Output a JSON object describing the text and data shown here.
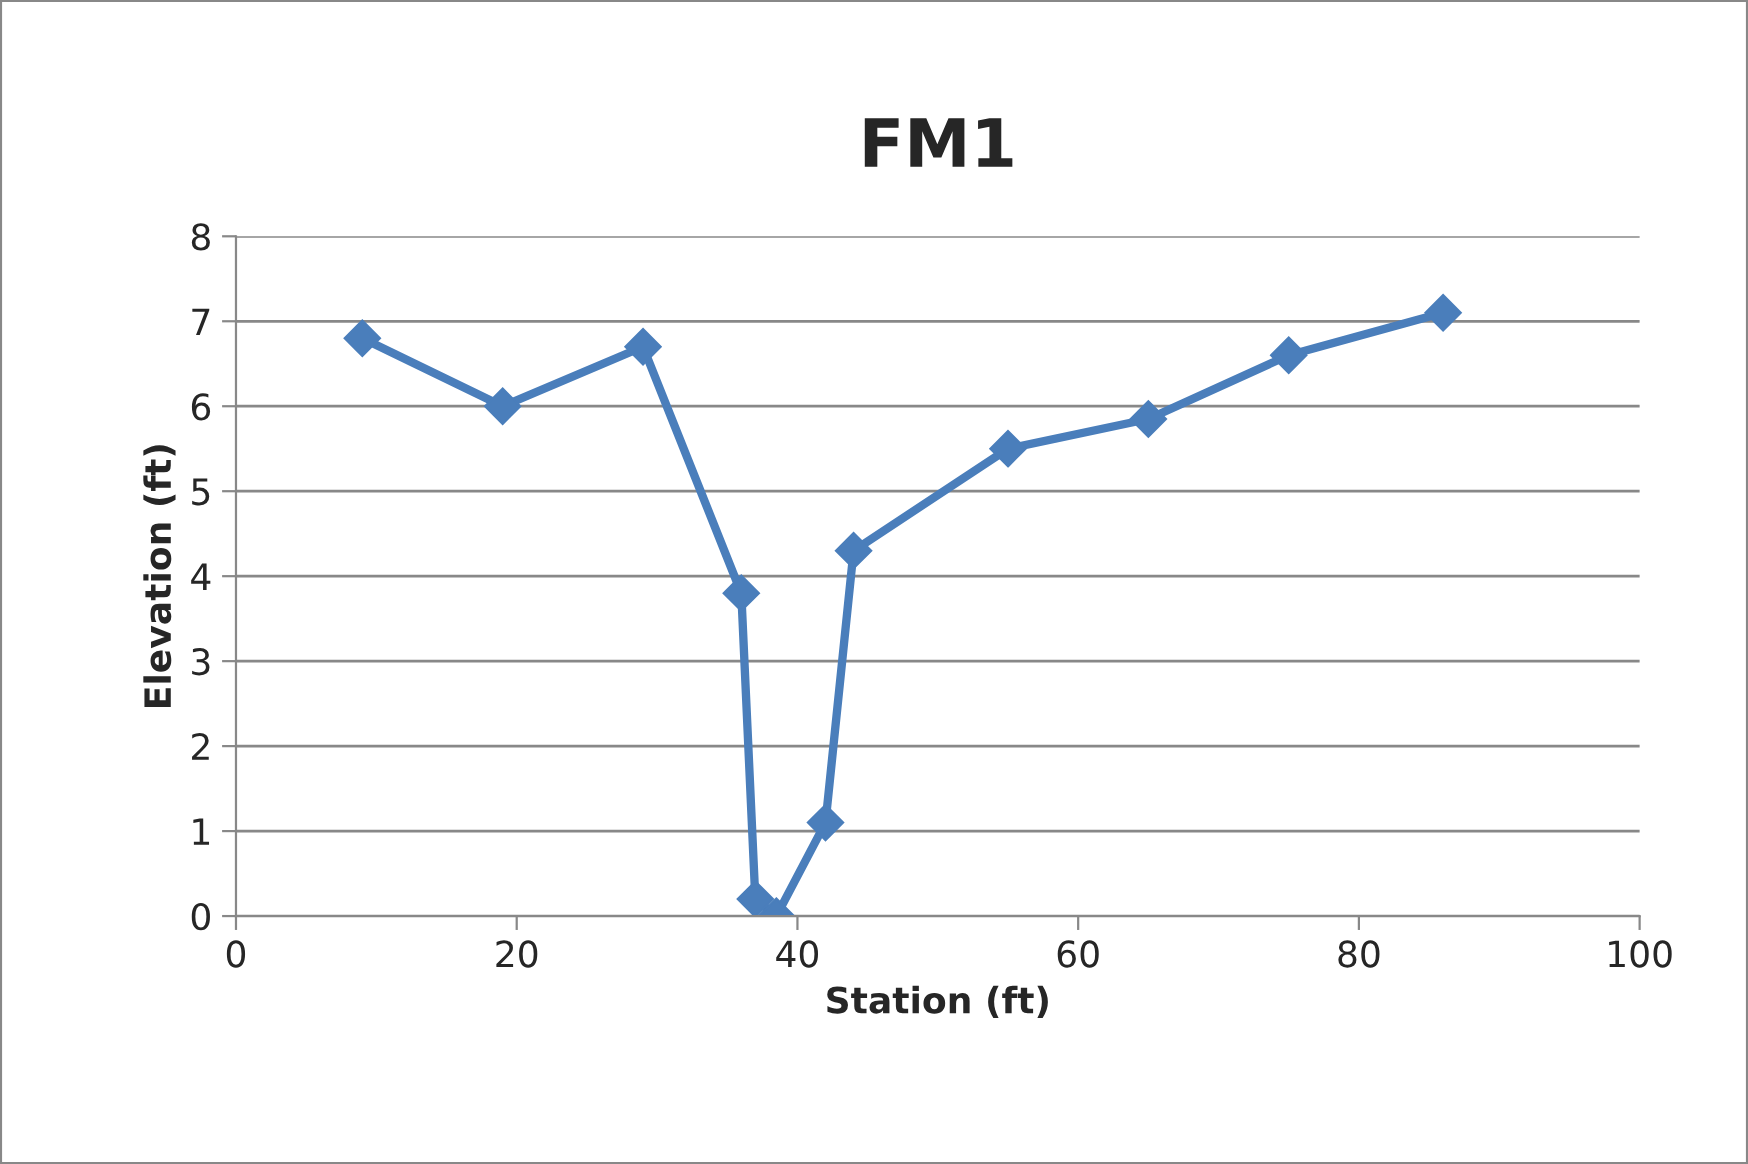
{
  "chart_data": {
    "type": "line",
    "title": "FM1",
    "xlabel": "Station (ft)",
    "ylabel": "Elevation (ft)",
    "x": [
      9,
      19,
      29,
      36,
      37,
      38.5,
      42,
      44,
      55,
      65,
      75,
      86
    ],
    "series": [
      {
        "color": "#4a7ebb",
        "values": [
          6.8,
          6.0,
          6.7,
          3.8,
          0.2,
          0,
          1.1,
          4.3,
          5.5,
          5.85,
          6.6,
          7.1
        ]
      }
    ],
    "xlim": [
      0,
      100
    ],
    "xticks": [
      0,
      20,
      40,
      60,
      80,
      100
    ],
    "ylim": [
      0,
      8
    ],
    "yticks": [
      0,
      1,
      2,
      3,
      4,
      5,
      6,
      7,
      8
    ],
    "grid": "y",
    "marker": "diamond",
    "line_style": "solid"
  }
}
